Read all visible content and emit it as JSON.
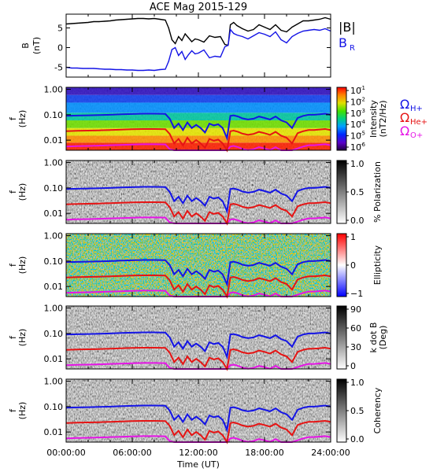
{
  "title": "ACE Mag 2015-129",
  "time_axis": {
    "label": "Time (UT)",
    "ticks": [
      "00:00:00",
      "06:00:00",
      "12:00:00",
      "18:00:00",
      "24:00:00"
    ],
    "range_hours": [
      0,
      24
    ]
  },
  "chart_data": [
    {
      "type": "line",
      "panel": "B",
      "ylabel": "B",
      "yunit": "(nT)",
      "ylim": [
        -7.5,
        8.5
      ],
      "yticks": [
        "5",
        "0",
        "-5"
      ],
      "legend": {
        "placement": "right",
        "entries": [
          {
            "label": "|B|",
            "color": "#000000"
          },
          {
            "label": "B",
            "sub": "R",
            "color": "#1414e6"
          }
        ]
      },
      "series": [
        {
          "name": "|B|",
          "color": "#000000",
          "x": [
            0,
            0.5,
            1,
            1.5,
            2,
            2.5,
            3,
            3.5,
            4,
            4.5,
            5,
            5.5,
            6,
            6.5,
            7,
            7.5,
            8,
            8.5,
            9,
            9.3,
            9.6,
            9.9,
            10.2,
            10.5,
            10.8,
            11.1,
            11.4,
            11.7,
            12,
            12.5,
            13,
            13.5,
            14,
            14.4,
            14.7,
            14.9,
            15.2,
            15.5,
            16,
            16.5,
            17,
            17.5,
            18,
            18.5,
            19,
            19.5,
            20,
            20.5,
            21,
            21.5,
            22,
            22.5,
            23,
            23.5,
            24
          ],
          "values": [
            6.0,
            6.1,
            6.2,
            6.3,
            6.4,
            6.6,
            6.6,
            6.7,
            6.8,
            7.0,
            7.1,
            7.2,
            7.3,
            7.4,
            7.4,
            7.3,
            7.4,
            7.2,
            7.0,
            5.0,
            2.0,
            1.0,
            2.8,
            1.8,
            3.5,
            2.5,
            1.5,
            2.2,
            2.0,
            1.4,
            3.0,
            2.6,
            2.8,
            0.8,
            0.6,
            5.8,
            6.4,
            5.6,
            4.8,
            4.2,
            4.6,
            5.8,
            5.2,
            4.6,
            5.8,
            4.4,
            4.0,
            5.2,
            6.0,
            6.8,
            6.8,
            7.0,
            7.2,
            7.6,
            7.2
          ]
        },
        {
          "name": "B",
          "color": "#1414e6",
          "x": [
            0,
            0.5,
            1,
            1.5,
            2,
            2.5,
            3,
            3.5,
            4,
            4.5,
            5,
            5.5,
            6,
            6.5,
            7,
            7.5,
            8,
            8.5,
            9,
            9.3,
            9.6,
            9.9,
            10.2,
            10.5,
            10.8,
            11.1,
            11.4,
            11.7,
            12,
            12.5,
            13,
            13.5,
            14,
            14.4,
            14.7,
            14.9,
            15.2,
            15.5,
            16,
            16.5,
            17,
            17.5,
            18,
            18.5,
            19,
            19.5,
            20,
            20.5,
            21,
            21.5,
            22,
            22.5,
            23,
            23.5,
            24
          ],
          "values": [
            -5.0,
            -5.2,
            -5.2,
            -5.3,
            -5.3,
            -5.3,
            -5.4,
            -5.5,
            -5.5,
            -5.6,
            -5.6,
            -5.7,
            -5.7,
            -5.8,
            -5.8,
            -5.7,
            -5.8,
            -5.6,
            -5.5,
            -3.5,
            -0.5,
            0.0,
            -2.0,
            -1.0,
            -3.0,
            -1.8,
            -0.8,
            -1.6,
            -1.4,
            -0.6,
            -2.6,
            -2.2,
            -2.4,
            0.2,
            0.6,
            4.6,
            3.6,
            3.2,
            2.8,
            2.2,
            3.0,
            3.8,
            3.4,
            2.8,
            4.0,
            2.0,
            1.2,
            2.8,
            3.6,
            4.2,
            4.4,
            4.6,
            4.4,
            4.8,
            4.2
          ]
        }
      ]
    },
    {
      "type": "heatmap",
      "panel": "power-spectrum",
      "ylabel": "f",
      "yunit": "(Hz)",
      "ylim_hz": [
        0.004,
        1.2
      ],
      "yticks": [
        "1.00",
        "0.10",
        "0.01"
      ],
      "yscale": "log",
      "colorbar": {
        "label": "Intensity",
        "unit": "(nT",
        "unit_sup": "2",
        "unit_end": "/Hz)",
        "ticks": [
          "10",
          "10",
          "10",
          "10",
          "10",
          "10"
        ],
        "tick_exps": [
          "-1",
          "-2",
          "-3",
          "-4",
          "-5",
          "-6"
        ],
        "palette": "rainbow"
      },
      "legend": {
        "placement": "right",
        "entries": [
          {
            "label": "Ω",
            "sub": "H+",
            "color": "#1414e6"
          },
          {
            "label": "Ω",
            "sub": "He+",
            "color": "#e61414"
          },
          {
            "label": "Ω",
            "sub": "O+",
            "color": "#e614e6"
          }
        ]
      }
    },
    {
      "type": "heatmap",
      "panel": "polarization",
      "ylabel": "f",
      "yunit": "(Hz)",
      "ylim_hz": [
        0.004,
        1.2
      ],
      "yticks": [
        "1.00",
        "0.10",
        "0.01"
      ],
      "yscale": "log",
      "colorbar": {
        "label": "% Polarization",
        "ticks": [
          "1.0",
          "0.5",
          "0.0"
        ],
        "palette": "gray"
      }
    },
    {
      "type": "heatmap",
      "panel": "ellipticity",
      "ylabel": "f",
      "yunit": "(Hz)",
      "ylim_hz": [
        0.004,
        1.2
      ],
      "yticks": [
        "1.00",
        "0.10",
        "0.01"
      ],
      "yscale": "log",
      "colorbar": {
        "label": "Ellipticity",
        "ticks": [
          "1",
          "0",
          "−1"
        ],
        "palette": "bwr"
      }
    },
    {
      "type": "heatmap",
      "panel": "kdotb",
      "ylabel": "f",
      "yunit": "(Hz)",
      "ylim_hz": [
        0.004,
        1.2
      ],
      "yticks": [
        "1.00",
        "0.10",
        "0.01"
      ],
      "yscale": "log",
      "colorbar": {
        "label": "k dot B",
        "unit": "(Deg)",
        "ticks": [
          "90",
          "60",
          "30",
          "0"
        ],
        "palette": "gray"
      }
    },
    {
      "type": "heatmap",
      "panel": "coherency",
      "ylabel": "f",
      "yunit": "(Hz)",
      "ylim_hz": [
        0.004,
        1.2
      ],
      "yticks": [
        "1.00",
        "0.10",
        "0.01"
      ],
      "yscale": "log",
      "colorbar": {
        "label": "Coherency",
        "ticks": [
          "1.0",
          "0.5",
          "0.0"
        ],
        "palette": "gray"
      }
    }
  ],
  "gyrofrequency_lines": {
    "x": [
      0,
      1,
      2,
      3,
      4,
      5,
      6,
      7,
      8,
      9,
      9.4,
      9.8,
      10.2,
      10.6,
      11,
      11.4,
      11.8,
      12.2,
      12.6,
      13,
      13.4,
      13.8,
      14.2,
      14.6,
      14.9,
      15.2,
      15.6,
      16,
      16.5,
      17,
      17.5,
      18,
      18.5,
      19,
      19.5,
      20,
      20.5,
      21,
      21.5,
      22,
      22.5,
      23,
      23.5,
      24
    ],
    "H+": [
      0.09,
      0.093,
      0.095,
      0.097,
      0.1,
      0.104,
      0.107,
      0.11,
      0.11,
      0.108,
      0.07,
      0.03,
      0.045,
      0.025,
      0.05,
      0.03,
      0.04,
      0.03,
      0.02,
      0.045,
      0.038,
      0.042,
      0.03,
      0.012,
      0.09,
      0.095,
      0.085,
      0.072,
      0.065,
      0.07,
      0.085,
      0.075,
      0.065,
      0.085,
      0.06,
      0.05,
      0.03,
      0.075,
      0.09,
      0.1,
      0.1,
      0.105,
      0.11,
      0.1
    ],
    "He+": [
      0.0225,
      0.0232,
      0.0238,
      0.0243,
      0.025,
      0.026,
      0.0268,
      0.0275,
      0.0275,
      0.027,
      0.0175,
      0.0075,
      0.0112,
      0.0062,
      0.0125,
      0.0075,
      0.01,
      0.0075,
      0.005,
      0.0112,
      0.0095,
      0.0105,
      0.0075,
      0.004,
      0.0225,
      0.0238,
      0.0212,
      0.018,
      0.0162,
      0.0175,
      0.0212,
      0.0188,
      0.0162,
      0.0212,
      0.015,
      0.0125,
      0.0075,
      0.0188,
      0.0225,
      0.025,
      0.025,
      0.0262,
      0.0275,
      0.025
    ],
    "O+": [
      0.0056,
      0.0058,
      0.0059,
      0.0061,
      0.0063,
      0.0065,
      0.0067,
      0.0069,
      0.0069,
      0.0068,
      0.0044,
      0.0019,
      0.0028,
      0.0016,
      0.0031,
      0.0019,
      0.0025,
      0.0019,
      0.0013,
      0.0028,
      0.0024,
      0.0026,
      0.0019,
      0.001,
      0.0056,
      0.0059,
      0.0053,
      0.0045,
      0.0041,
      0.0044,
      0.0053,
      0.0047,
      0.0041,
      0.0053,
      0.0038,
      0.0031,
      0.0019,
      0.0047,
      0.0056,
      0.0063,
      0.0063,
      0.0066,
      0.0069,
      0.0063
    ]
  },
  "colors": {
    "H+": "#1414e6",
    "He+": "#e61414",
    "O+": "#e614e6",
    "absB": "#000000",
    "BR": "#1414e6"
  }
}
